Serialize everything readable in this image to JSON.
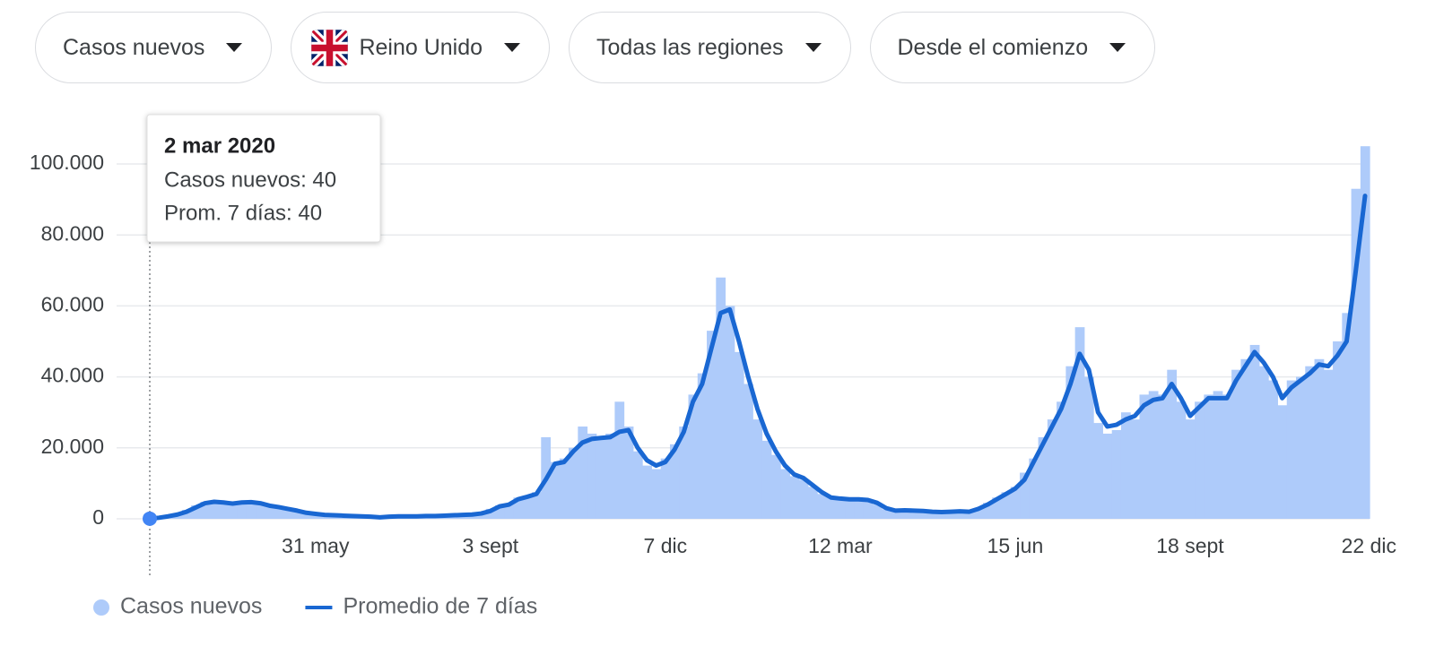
{
  "filters": [
    "Casos nuevos",
    "Reino Unido",
    "Todas las regiones",
    "Desde el comienzo"
  ],
  "chart_data": {
    "type": "combo",
    "categories": [
      null,
      null,
      null,
      null,
      null,
      null,
      null,
      null,
      null,
      null,
      null,
      null,
      null,
      null,
      null,
      null,
      null,
      null,
      "31 may",
      null,
      null,
      null,
      null,
      null,
      null,
      null,
      null,
      null,
      null,
      null,
      null,
      null,
      null,
      null,
      null,
      null,
      null,
      "3 sept",
      null,
      null,
      null,
      null,
      null,
      null,
      null,
      null,
      null,
      null,
      null,
      null,
      null,
      null,
      null,
      null,
      null,
      null,
      "7 dic",
      null,
      null,
      null,
      null,
      null,
      null,
      null,
      null,
      null,
      null,
      null,
      null,
      null,
      null,
      null,
      null,
      null,
      null,
      "12 mar",
      null,
      null,
      null,
      null,
      null,
      null,
      null,
      null,
      null,
      null,
      null,
      null,
      null,
      null,
      null,
      null,
      null,
      null,
      "15 jun",
      null,
      null,
      null,
      null,
      null,
      null,
      null,
      null,
      null,
      null,
      null,
      null,
      null,
      null,
      null,
      null,
      null,
      null,
      "18 sept",
      null,
      null,
      null,
      null,
      null,
      null,
      null,
      null,
      null,
      null,
      null,
      null,
      null,
      null,
      null,
      null,
      null,
      null,
      "22 dic"
    ],
    "series": [
      {
        "name": "Casos nuevos",
        "type": "bar",
        "color": "#aecbfa",
        "values": [
          40,
          400,
          800,
          1500,
          2500,
          3800,
          4800,
          5000,
          4500,
          4000,
          4900,
          5000,
          4200,
          3500,
          3200,
          2600,
          2000,
          1600,
          1200,
          1200,
          1000,
          800,
          700,
          700,
          500,
          400,
          700,
          800,
          600,
          800,
          900,
          700,
          1000,
          1100,
          1200,
          1300,
          1700,
          2800,
          3800,
          4300,
          6000,
          6500,
          7500,
          23000,
          16000,
          17000,
          20000,
          26000,
          24000,
          23000,
          24000,
          33000,
          26000,
          19000,
          15000,
          14000,
          17000,
          21000,
          26000,
          35000,
          41000,
          53000,
          68000,
          60000,
          47000,
          38000,
          28000,
          22000,
          18000,
          14000,
          12000,
          11000,
          9000,
          7000,
          6000,
          5500,
          5500,
          5800,
          5000,
          4000,
          2700,
          2500,
          2300,
          2200,
          2100,
          1900,
          1800,
          2000,
          2200,
          1900,
          3000,
          4500,
          6000,
          7500,
          9000,
          13000,
          17000,
          23000,
          28000,
          33000,
          43000,
          54000,
          40000,
          27000,
          24000,
          25000,
          30000,
          28000,
          35000,
          36000,
          35000,
          42000,
          33000,
          28000,
          33000,
          35000,
          36000,
          35000,
          42000,
          45000,
          49000,
          43000,
          39000,
          32000,
          39000,
          40000,
          43000,
          45000,
          42000,
          50000,
          58000,
          93000,
          105000
        ]
      },
      {
        "name": "Promedio de 7 días",
        "type": "line",
        "color": "#1967d2",
        "values": [
          40,
          300,
          700,
          1200,
          2000,
          3200,
          4400,
          4800,
          4600,
          4300,
          4600,
          4700,
          4400,
          3700,
          3300,
          2800,
          2300,
          1700,
          1400,
          1100,
          1000,
          900,
          800,
          700,
          600,
          400,
          600,
          700,
          700,
          700,
          800,
          800,
          900,
          1000,
          1100,
          1200,
          1500,
          2200,
          3500,
          4000,
          5500,
          6200,
          7000,
          11000,
          15500,
          16000,
          19000,
          21500,
          22500,
          22800,
          23000,
          24500,
          25000,
          20000,
          16500,
          15000,
          16000,
          19500,
          24500,
          33000,
          38000,
          48000,
          58000,
          59000,
          50000,
          40000,
          31000,
          24000,
          19000,
          15000,
          12500,
          11500,
          9500,
          7500,
          6000,
          5700,
          5500,
          5500,
          5300,
          4500,
          3000,
          2300,
          2400,
          2300,
          2200,
          2000,
          1900,
          2000,
          2100,
          2000,
          2800,
          4000,
          5500,
          7000,
          8500,
          11000,
          16000,
          21000,
          26000,
          31000,
          38000,
          46500,
          42000,
          30000,
          26000,
          26500,
          28000,
          29000,
          32000,
          33500,
          34000,
          38000,
          34000,
          29000,
          31500,
          34000,
          34000,
          34000,
          39000,
          43000,
          47000,
          44000,
          40000,
          34000,
          37000,
          39000,
          41000,
          43500,
          43000,
          46000,
          50000,
          70000,
          91000
        ]
      }
    ],
    "ylim": [
      0,
      100000
    ],
    "yticks": [
      0,
      {
        "value": 20000,
        "label": "20.000"
      },
      {
        "value": 40000,
        "label": "40.000"
      },
      {
        "value": 60000,
        "label": "60.000"
      },
      {
        "value": 80000,
        "label": "80.000"
      },
      {
        "value": 100000,
        "label": "100.000"
      }
    ],
    "grid": true,
    "legend": "bottom-left",
    "tooltip": {
      "title": "2 mar 2020",
      "lines": [
        "Casos nuevos: 40",
        "Prom. 7 días: 40"
      ]
    }
  }
}
